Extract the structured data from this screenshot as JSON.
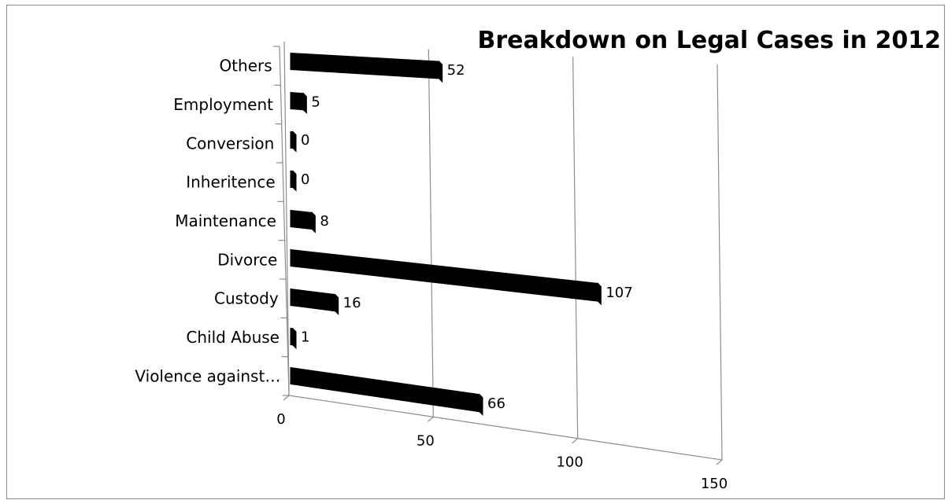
{
  "chart_data": {
    "type": "bar",
    "orientation": "horizontal",
    "title": "Breakdown on Legal Cases in 2012",
    "categories": [
      "Violence against…",
      "Child Abuse",
      "Custody",
      "Divorce",
      "Maintenance",
      "Inheritence",
      "Conversion",
      "Employment",
      "Others"
    ],
    "values": [
      66,
      1,
      16,
      107,
      8,
      0,
      0,
      5,
      52
    ],
    "value_labels": [
      "66",
      "1",
      "16",
      "107",
      "8",
      "0",
      "0",
      "5",
      "52"
    ],
    "x_ticks": [
      "0",
      "50",
      "100",
      "150"
    ],
    "xlim": [
      0,
      150
    ],
    "grid": true,
    "legend": "none",
    "style": "3d",
    "bar_color": "#000000"
  }
}
